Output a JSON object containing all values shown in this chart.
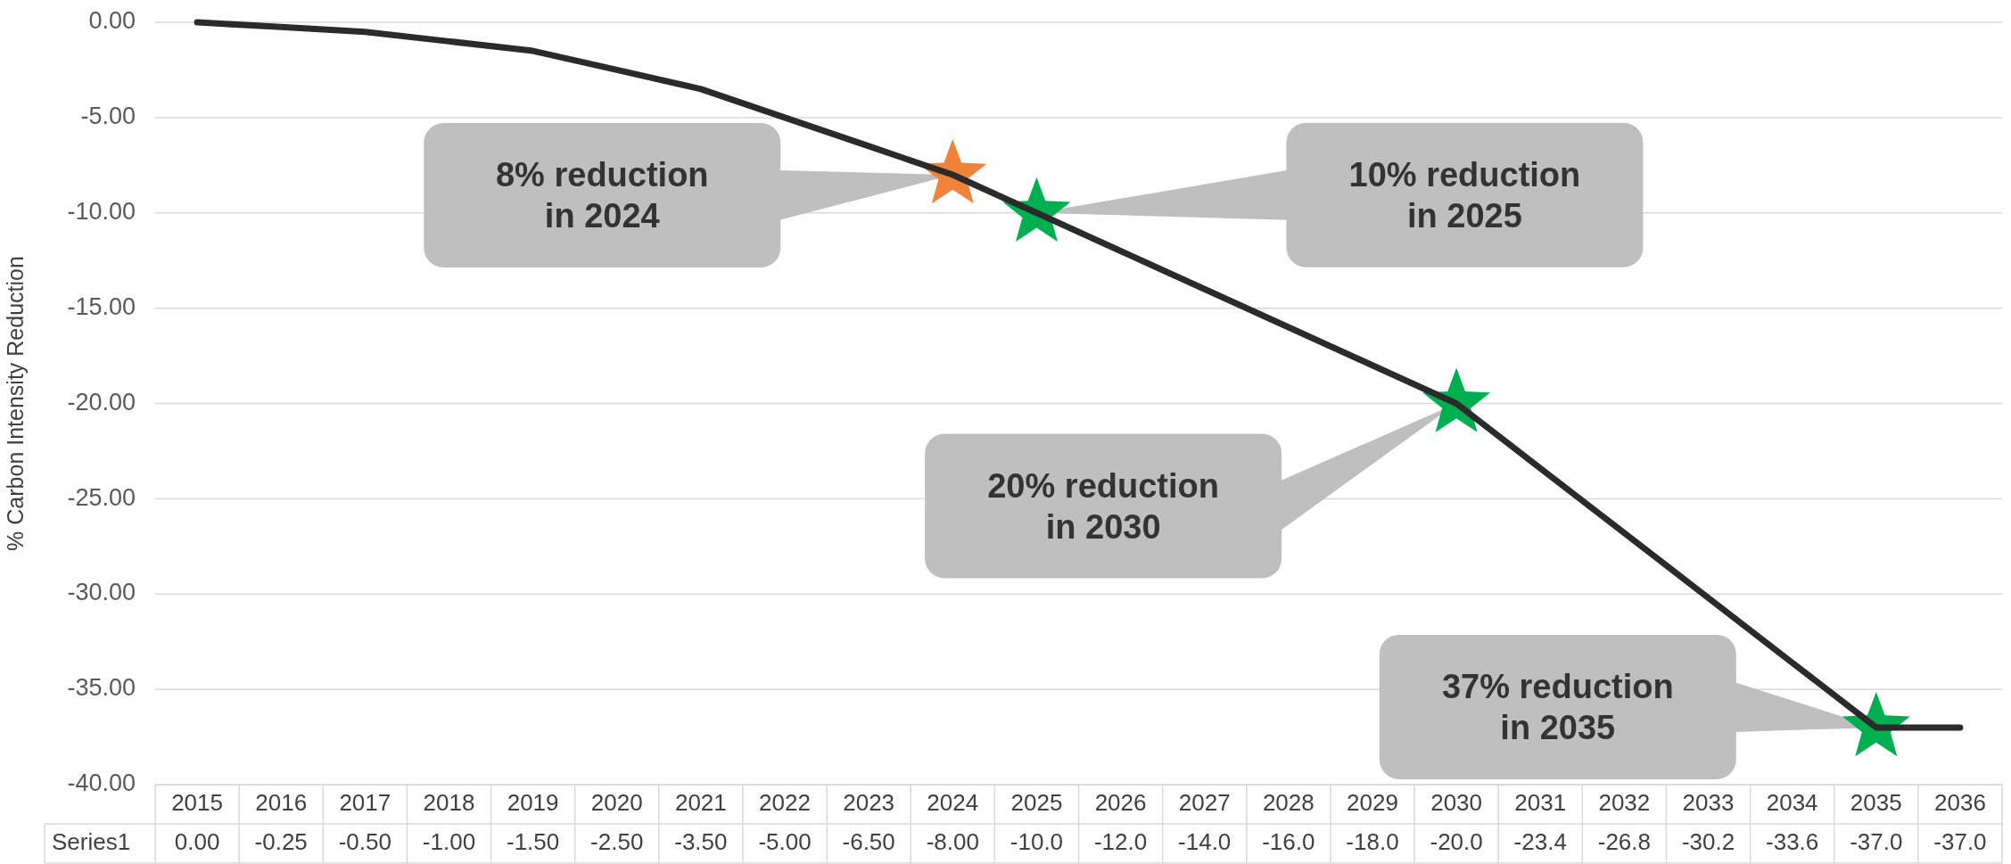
{
  "chart_data": {
    "type": "line",
    "ylabel": "% Carbon Intensity Reduction",
    "categories": [
      "2015",
      "2016",
      "2017",
      "2018",
      "2019",
      "2020",
      "2021",
      "2022",
      "2023",
      "2024",
      "2025",
      "2026",
      "2027",
      "2028",
      "2029",
      "2030",
      "2031",
      "2032",
      "2033",
      "2034",
      "2035",
      "2036"
    ],
    "ylim": [
      -40,
      0
    ],
    "yticks": [
      {
        "value": 0,
        "label": "0.00"
      },
      {
        "value": -5,
        "label": "-5.00"
      },
      {
        "value": -10,
        "label": "-10.00"
      },
      {
        "value": -15,
        "label": "-15.00"
      },
      {
        "value": -20,
        "label": "-20.00"
      },
      {
        "value": -25,
        "label": "-25.00"
      },
      {
        "value": -30,
        "label": "-30.00"
      },
      {
        "value": -35,
        "label": "-35.00"
      },
      {
        "value": -40,
        "label": "-40.00"
      }
    ],
    "grid": "y",
    "series": [
      {
        "name": "Series1",
        "color": "#2b2b2b",
        "marker": "none",
        "line_style": "solid",
        "values": [
          0,
          -0.25,
          -0.5,
          -1,
          -1.5,
          -2.5,
          -3.5,
          -5,
          -6.5,
          -8,
          -10,
          -12,
          -14,
          -16,
          -18,
          -20,
          -23.4,
          -26.8,
          -30.2,
          -33.6,
          -37,
          -37
        ],
        "value_labels": [
          "0.00",
          "-0.25",
          "-0.50",
          "-1.00",
          "-1.50",
          "-2.50",
          "-3.50",
          "-5.00",
          "-6.50",
          "-8.00",
          "-10.0",
          "-12.0",
          "-14.0",
          "-16.0",
          "-18.0",
          "-20.0",
          "-23.4",
          "-26.8",
          "-30.2",
          "-33.6",
          "-37.0",
          "-37.0"
        ]
      },
      {
        "type": "scatter",
        "marker": "star",
        "values": [
          null,
          null,
          null,
          null,
          null,
          null,
          null,
          null,
          null,
          -8,
          -10,
          null,
          null,
          null,
          null,
          -20,
          null,
          null,
          null,
          null,
          -37,
          null
        ],
        "colors": [
          null,
          null,
          null,
          null,
          null,
          null,
          null,
          null,
          null,
          "#f0823a",
          "#00b050",
          null,
          null,
          null,
          null,
          "#00b050",
          null,
          null,
          null,
          null,
          "#00b050",
          null
        ]
      }
    ],
    "annotations": [
      "8% reduction\nin 2024",
      "10% reduction\nin 2025",
      "20% reduction\nin 2030",
      "37% reduction\nin 2035"
    ]
  }
}
